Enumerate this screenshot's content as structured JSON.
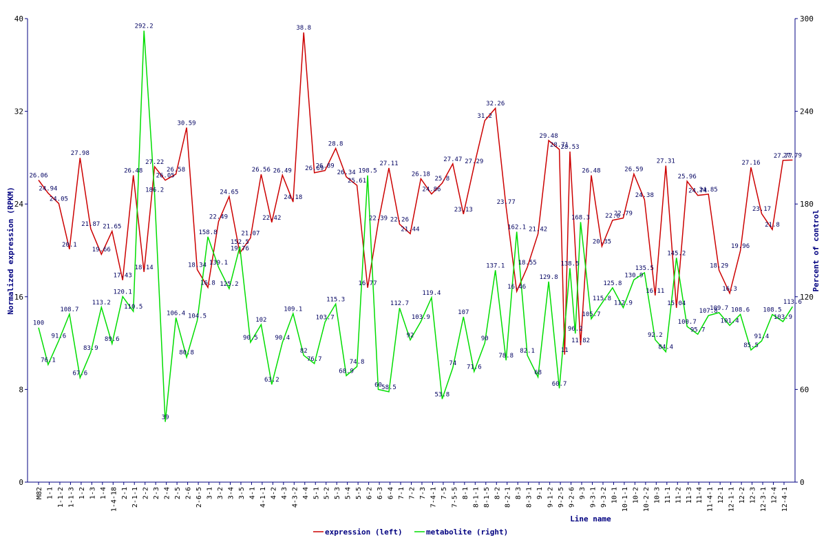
{
  "chart_data": {
    "type": "line",
    "xlabel": "Line name",
    "ylabel_left": "Normalized expression (RPKM)",
    "ylabel_right": "Percent of control",
    "ylim_left": [
      0,
      40
    ],
    "ylim_right": [
      0,
      300
    ],
    "yticks_left": [
      "0",
      "8",
      "16",
      "24",
      "32",
      "40"
    ],
    "yticks_right": [
      "0",
      "60",
      "120",
      "180",
      "240",
      "300"
    ],
    "grid": false,
    "legend_position": "bottom-center",
    "categories": [
      "M82",
      "1-1",
      "1-1-2",
      "1-1-3",
      "1-2",
      "1-3",
      "1-4",
      "1-4-18",
      "2-1",
      "2-1-1",
      "2-2",
      "2-3",
      "2-4",
      "2-5",
      "2-6",
      "2-6-5",
      "3-1",
      "3-2",
      "3-4",
      "3-5",
      "4-1",
      "4-1-1",
      "4-2",
      "4-3",
      "4-3-2",
      "4-4",
      "5-1",
      "5-2",
      "5-3",
      "5-4",
      "5-5",
      "6-2",
      "6-3",
      "6-4",
      "7-1",
      "7-2",
      "7-3",
      "7-4-1",
      "7-5",
      "7-5-5",
      "8-1",
      "8-1-1",
      "8-1-5",
      "8-2",
      "8-2-1",
      "8-3",
      "8-3-1",
      "9-1",
      "9-1-2",
      "9-2-5",
      "9-2-6",
      "9-3",
      "9-3-1",
      "9-3-2",
      "10-1",
      "10-1-1",
      "10-2",
      "10-2-2",
      "10-3",
      "11-1",
      "11-2",
      "11-3",
      "11-4",
      "11-4-1",
      "12-1",
      "12-1-1",
      "12-2",
      "12-3",
      "12-3-1",
      "12-4",
      "12-4-1"
    ],
    "series": [
      {
        "name": "expression (left)",
        "axis": "left",
        "color": "#cc0000",
        "points": [
          {
            "x": 0,
            "y": 26.06,
            "label": "26.06"
          },
          {
            "x": 0.9,
            "y": 24.94,
            "label": "24.94"
          },
          {
            "x": 1.9,
            "y": 24.05,
            "label": "24.05"
          },
          {
            "x": 2.9,
            "y": 20.1,
            "label": "20.1"
          },
          {
            "x": 3.9,
            "y": 27.98,
            "label": "27.98"
          },
          {
            "x": 4.9,
            "y": 21.87,
            "label": "21.87"
          },
          {
            "x": 5.9,
            "y": 19.66,
            "label": "19.66"
          },
          {
            "x": 6.9,
            "y": 21.65,
            "label": "21.65"
          },
          {
            "x": 7.9,
            "y": 17.43,
            "label": "17.43"
          },
          {
            "x": 8.9,
            "y": 26.48,
            "label": "26.48"
          },
          {
            "x": 9.9,
            "y": 18.14,
            "label": "18.14"
          },
          {
            "x": 10.9,
            "y": 27.22,
            "label": "27.22"
          },
          {
            "x": 11.9,
            "y": 26.05,
            "label": "26.05"
          },
          {
            "x": 12.9,
            "y": 26.58,
            "label": "26.58"
          },
          {
            "x": 13.9,
            "y": 30.59,
            "label": "30.59"
          },
          {
            "x": 14.9,
            "y": 18.34,
            "label": "18.34"
          },
          {
            "x": 15.9,
            "y": 16.8,
            "label": "16.8"
          },
          {
            "x": 16.9,
            "y": 22.49,
            "label": "22.49"
          },
          {
            "x": 17.9,
            "y": 24.65,
            "label": "24.65"
          },
          {
            "x": 18.9,
            "y": 19.76,
            "label": "19.76"
          },
          {
            "x": 19.9,
            "y": 21.07,
            "label": "21.07"
          },
          {
            "x": 20.9,
            "y": 26.56,
            "label": "26.56"
          },
          {
            "x": 21.9,
            "y": 22.42,
            "label": "22.42"
          },
          {
            "x": 22.9,
            "y": 26.49,
            "label": "26.49"
          },
          {
            "x": 23.9,
            "y": 24.18,
            "label": "24.18"
          },
          {
            "x": 24.9,
            "y": 38.8,
            "label": "38.8"
          },
          {
            "x": 25.9,
            "y": 26.69,
            "label": "26.69"
          },
          {
            "x": 26.9,
            "y": 26.89,
            "label": "26.89"
          },
          {
            "x": 27.9,
            "y": 28.8,
            "label": "28.8"
          },
          {
            "x": 28.9,
            "y": 26.34,
            "label": "26.34"
          },
          {
            "x": 29.9,
            "y": 25.61,
            "label": "25.61"
          },
          {
            "x": 30.9,
            "y": 16.77,
            "label": "16.77"
          },
          {
            "x": 31.9,
            "y": 22.39,
            "label": "22.39"
          },
          {
            "x": 32.9,
            "y": 27.11,
            "label": "27.11"
          },
          {
            "x": 33.9,
            "y": 22.26,
            "label": "22.26"
          },
          {
            "x": 34.9,
            "y": 21.44,
            "label": "21.44"
          },
          {
            "x": 35.9,
            "y": 26.18,
            "label": "26.18"
          },
          {
            "x": 36.9,
            "y": 24.86,
            "label": "24.86"
          },
          {
            "x": 37.9,
            "y": 25.8,
            "label": "25.8"
          },
          {
            "x": 38.9,
            "y": 27.47,
            "label": "27.47"
          },
          {
            "x": 39.9,
            "y": 23.13,
            "label": "23.13"
          },
          {
            "x": 40.9,
            "y": 27.29,
            "label": "27.29"
          },
          {
            "x": 41.9,
            "y": 31.2,
            "label": "31.2"
          },
          {
            "x": 42.9,
            "y": 32.26,
            "label": "32.26"
          },
          {
            "x": 43.9,
            "y": 23.77,
            "label": "23.77"
          },
          {
            "x": 44.9,
            "y": 16.46,
            "label": "16.46"
          },
          {
            "x": 45.9,
            "y": 18.55,
            "label": "18.55"
          },
          {
            "x": 46.9,
            "y": 21.42,
            "label": "21.42"
          },
          {
            "x": 47.9,
            "y": 29.48,
            "label": "29.48"
          },
          {
            "x": 48.9,
            "y": 28.71,
            "label": "28.71"
          },
          {
            "x": 49.4,
            "y": 11,
            "label": "11"
          },
          {
            "x": 49.9,
            "y": 28.53,
            "label": "28.53"
          },
          {
            "x": 50.9,
            "y": 11.82,
            "label": "11.82"
          },
          {
            "x": 51.9,
            "y": 26.48,
            "label": "26.48"
          },
          {
            "x": 52.9,
            "y": 20.35,
            "label": "20.35"
          },
          {
            "x": 53.9,
            "y": 22.6,
            "label": "22.6"
          },
          {
            "x": 54.9,
            "y": 22.79,
            "label": "22.79"
          },
          {
            "x": 55.9,
            "y": 26.59,
            "label": "26.59"
          },
          {
            "x": 56.9,
            "y": 24.38,
            "label": "24.38"
          },
          {
            "x": 57.9,
            "y": 16.11,
            "label": "16.11"
          },
          {
            "x": 58.9,
            "y": 27.31,
            "label": "27.31"
          },
          {
            "x": 59.9,
            "y": 15.04,
            "label": "15.04"
          },
          {
            "x": 60.9,
            "y": 25.96,
            "label": "25.96"
          },
          {
            "x": 61.9,
            "y": 24.74,
            "label": "24.74"
          },
          {
            "x": 62.9,
            "y": 24.85,
            "label": "24.85"
          },
          {
            "x": 63.9,
            "y": 18.29,
            "label": "18.29"
          },
          {
            "x": 64.9,
            "y": 16.3,
            "label": "16.3"
          },
          {
            "x": 65.9,
            "y": 19.96,
            "label": "19.96"
          },
          {
            "x": 66.9,
            "y": 27.16,
            "label": "27.16"
          },
          {
            "x": 67.9,
            "y": 23.17,
            "label": "23.17"
          },
          {
            "x": 68.9,
            "y": 21.8,
            "label": "21.8"
          },
          {
            "x": 69.9,
            "y": 27.77,
            "label": "27.77"
          },
          {
            "x": 70.8,
            "y": 27.79,
            "label": "27.79"
          }
        ]
      },
      {
        "name": "metabolite (right)",
        "axis": "right",
        "color": "#00dd00",
        "points": [
          {
            "x": 0,
            "y": 100,
            "label": "100"
          },
          {
            "x": 0.9,
            "y": 76.1,
            "label": "76.1"
          },
          {
            "x": 1.9,
            "y": 91.6,
            "label": "91.6"
          },
          {
            "x": 2.9,
            "y": 108.7,
            "label": "108.7"
          },
          {
            "x": 3.9,
            "y": 67.6,
            "label": "67.6"
          },
          {
            "x": 4.9,
            "y": 83.9,
            "label": "83.9"
          },
          {
            "x": 5.9,
            "y": 113.2,
            "label": "113.2"
          },
          {
            "x": 6.9,
            "y": 89.6,
            "label": "89.6"
          },
          {
            "x": 7.9,
            "y": 120.1,
            "label": "120.1"
          },
          {
            "x": 8.9,
            "y": 110.5,
            "label": "110.5"
          },
          {
            "x": 9.9,
            "y": 292.2,
            "label": "292.2"
          },
          {
            "x": 10.9,
            "y": 186.2,
            "label": "186.2"
          },
          {
            "x": 11.9,
            "y": 39,
            "label": "39"
          },
          {
            "x": 12.9,
            "y": 106.4,
            "label": "106.4"
          },
          {
            "x": 13.9,
            "y": 80.8,
            "label": "80.8"
          },
          {
            "x": 14.9,
            "y": 104.5,
            "label": "104.5"
          },
          {
            "x": 15.9,
            "y": 158.8,
            "label": "158.8"
          },
          {
            "x": 16.9,
            "y": 139.1,
            "label": "139.1"
          },
          {
            "x": 17.9,
            "y": 125.2,
            "label": "125.2"
          },
          {
            "x": 18.9,
            "y": 152.5,
            "label": "152.5"
          },
          {
            "x": 19.9,
            "y": 90.5,
            "label": "90.5"
          },
          {
            "x": 20.9,
            "y": 102,
            "label": "102"
          },
          {
            "x": 21.9,
            "y": 63.2,
            "label": "63.2"
          },
          {
            "x": 22.9,
            "y": 90.4,
            "label": "90.4"
          },
          {
            "x": 23.9,
            "y": 109.1,
            "label": "109.1"
          },
          {
            "x": 24.9,
            "y": 82,
            "label": "82"
          },
          {
            "x": 25.9,
            "y": 76.7,
            "label": "76.7"
          },
          {
            "x": 26.9,
            "y": 103.7,
            "label": "103.7"
          },
          {
            "x": 27.9,
            "y": 115.3,
            "label": "115.3"
          },
          {
            "x": 28.9,
            "y": 68.9,
            "label": "68.9"
          },
          {
            "x": 29.9,
            "y": 74.8,
            "label": "74.8"
          },
          {
            "x": 30.9,
            "y": 198.5,
            "label": "198.5"
          },
          {
            "x": 31.9,
            "y": 60,
            "label": "60"
          },
          {
            "x": 32.9,
            "y": 58.5,
            "label": "58.5"
          },
          {
            "x": 33.9,
            "y": 112.7,
            "label": "112.7"
          },
          {
            "x": 34.9,
            "y": 92,
            "label": "92"
          },
          {
            "x": 35.9,
            "y": 103.9,
            "label": "103.9"
          },
          {
            "x": 36.9,
            "y": 119.4,
            "label": "119.4"
          },
          {
            "x": 37.9,
            "y": 53.8,
            "label": "53.8"
          },
          {
            "x": 38.9,
            "y": 74,
            "label": "74"
          },
          {
            "x": 39.9,
            "y": 107,
            "label": "107"
          },
          {
            "x": 40.9,
            "y": 71.6,
            "label": "71.6"
          },
          {
            "x": 41.9,
            "y": 90,
            "label": "90"
          },
          {
            "x": 42.9,
            "y": 137.1,
            "label": "137.1"
          },
          {
            "x": 43.9,
            "y": 78.8,
            "label": "78.8"
          },
          {
            "x": 44.9,
            "y": 162.1,
            "label": "162.1"
          },
          {
            "x": 45.9,
            "y": 82.1,
            "label": "82.1"
          },
          {
            "x": 46.9,
            "y": 68,
            "label": "68"
          },
          {
            "x": 47.9,
            "y": 129.8,
            "label": "129.8"
          },
          {
            "x": 48.9,
            "y": 60.7,
            "label": "60.7"
          },
          {
            "x": 49.9,
            "y": 138.5,
            "label": "138.5"
          },
          {
            "x": 50.4,
            "y": 96.2,
            "label": "96.2"
          },
          {
            "x": 50.9,
            "y": 168.3,
            "label": "168.3"
          },
          {
            "x": 51.9,
            "y": 105.7,
            "label": "105.7"
          },
          {
            "x": 52.9,
            "y": 115.8,
            "label": "115.8"
          },
          {
            "x": 53.9,
            "y": 125.8,
            "label": "125.8"
          },
          {
            "x": 54.9,
            "y": 112.9,
            "label": "112.9"
          },
          {
            "x": 55.9,
            "y": 130.9,
            "label": "130.9"
          },
          {
            "x": 56.9,
            "y": 135.5,
            "label": "135.5"
          },
          {
            "x": 57.9,
            "y": 92.2,
            "label": "92.2"
          },
          {
            "x": 58.9,
            "y": 84.4,
            "label": "84.4"
          },
          {
            "x": 59.9,
            "y": 145.2,
            "label": "145.2"
          },
          {
            "x": 60.9,
            "y": 100.7,
            "label": "100.7"
          },
          {
            "x": 61.9,
            "y": 95.7,
            "label": "95.7"
          },
          {
            "x": 62.9,
            "y": 107.8,
            "label": "107.8"
          },
          {
            "x": 63.9,
            "y": 109.7,
            "label": "109.7"
          },
          {
            "x": 64.9,
            "y": 101.4,
            "label": "101.4"
          },
          {
            "x": 65.9,
            "y": 108.6,
            "label": "108.6"
          },
          {
            "x": 66.9,
            "y": 85.5,
            "label": "85.5"
          },
          {
            "x": 67.9,
            "y": 91.4,
            "label": "91.4"
          },
          {
            "x": 68.9,
            "y": 108.5,
            "label": "108.5"
          },
          {
            "x": 69.9,
            "y": 103.9,
            "label": "103.9"
          },
          {
            "x": 70.8,
            "y": 113.6,
            "label": "113.6"
          }
        ]
      }
    ]
  },
  "colors": {
    "axis": "#000080",
    "expression": "#cc0000",
    "metabolite": "#00dd00"
  }
}
